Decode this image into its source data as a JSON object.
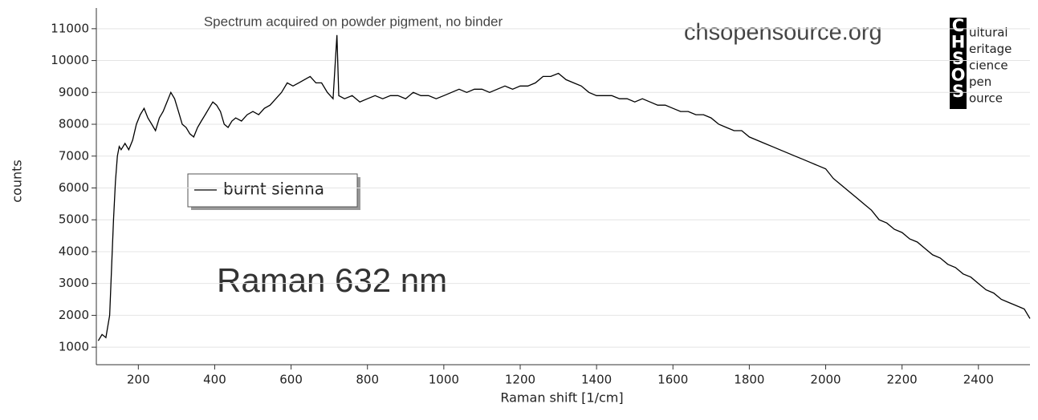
{
  "chart_data": {
    "type": "line",
    "annotation": "Spectrum acquired on powder pigment, no binder",
    "watermark": "chsopensource.org",
    "label": "Raman 632 nm",
    "xlabel": "Raman shift [1/cm]",
    "ylabel": "counts",
    "logo": {
      "letters": [
        "C",
        "H",
        "S",
        "O",
        "S"
      ],
      "words": [
        "ultural",
        "eritage",
        "cience",
        "pen",
        "ource"
      ]
    },
    "xlim": [
      90,
      2535
    ],
    "ylim": [
      450,
      11650
    ],
    "xticks": [
      200,
      400,
      600,
      800,
      1000,
      1200,
      1400,
      1600,
      1800,
      2000,
      2200,
      2400
    ],
    "yticks": [
      1000,
      2000,
      3000,
      4000,
      5000,
      6000,
      7000,
      8000,
      9000,
      10000,
      11000
    ],
    "grid": true,
    "x": [
      95,
      105,
      115,
      125,
      130,
      135,
      140,
      145,
      150,
      155,
      165,
      175,
      185,
      195,
      205,
      215,
      225,
      235,
      245,
      255,
      265,
      275,
      285,
      295,
      305,
      315,
      325,
      335,
      345,
      355,
      365,
      375,
      385,
      395,
      405,
      415,
      425,
      435,
      445,
      455,
      470,
      485,
      500,
      515,
      530,
      545,
      560,
      575,
      590,
      605,
      620,
      635,
      650,
      665,
      680,
      695,
      710,
      720,
      725,
      740,
      760,
      780,
      800,
      820,
      840,
      860,
      880,
      900,
      920,
      940,
      960,
      980,
      1000,
      1020,
      1040,
      1060,
      1080,
      1100,
      1120,
      1140,
      1160,
      1180,
      1200,
      1220,
      1240,
      1260,
      1280,
      1300,
      1320,
      1340,
      1360,
      1380,
      1400,
      1420,
      1440,
      1460,
      1480,
      1500,
      1520,
      1540,
      1560,
      1580,
      1600,
      1620,
      1640,
      1660,
      1680,
      1700,
      1720,
      1740,
      1760,
      1780,
      1800,
      1820,
      1840,
      1860,
      1880,
      1900,
      1920,
      1940,
      1960,
      1980,
      2000,
      2020,
      2040,
      2060,
      2080,
      2100,
      2120,
      2140,
      2160,
      2180,
      2200,
      2220,
      2240,
      2260,
      2280,
      2300,
      2320,
      2340,
      2360,
      2380,
      2400,
      2420,
      2440,
      2460,
      2480,
      2500,
      2520,
      2535
    ],
    "series": [
      {
        "name": "burnt sienna",
        "color": "#000000",
        "values": [
          1200,
          1400,
          1300,
          2000,
          3500,
          5000,
          6200,
          7000,
          7300,
          7200,
          7400,
          7200,
          7500,
          8000,
          8300,
          8500,
          8200,
          8000,
          7800,
          8200,
          8400,
          8700,
          9000,
          8800,
          8400,
          8000,
          7900,
          7700,
          7600,
          7900,
          8100,
          8300,
          8500,
          8700,
          8600,
          8400,
          8000,
          7900,
          8100,
          8200,
          8100,
          8300,
          8400,
          8300,
          8500,
          8600,
          8800,
          9000,
          9300,
          9200,
          9300,
          9400,
          9500,
          9300,
          9300,
          9000,
          8800,
          10800,
          8900,
          8800,
          8900,
          8700,
          8800,
          8900,
          8800,
          8900,
          8900,
          8800,
          9000,
          8900,
          8900,
          8800,
          8900,
          9000,
          9100,
          9000,
          9100,
          9100,
          9000,
          9100,
          9200,
          9100,
          9200,
          9200,
          9300,
          9500,
          9500,
          9600,
          9400,
          9300,
          9200,
          9000,
          8900,
          8900,
          8900,
          8800,
          8800,
          8700,
          8800,
          8700,
          8600,
          8600,
          8500,
          8400,
          8400,
          8300,
          8300,
          8200,
          8000,
          7900,
          7800,
          7800,
          7600,
          7500,
          7400,
          7300,
          7200,
          7100,
          7000,
          6900,
          6800,
          6700,
          6600,
          6300,
          6100,
          5900,
          5700,
          5500,
          5300,
          5000,
          4900,
          4700,
          4600,
          4400,
          4300,
          4100,
          3900,
          3800,
          3600,
          3500,
          3300,
          3200,
          3000,
          2800,
          2700,
          2500,
          2400,
          2300,
          2200,
          1900
        ]
      }
    ]
  }
}
